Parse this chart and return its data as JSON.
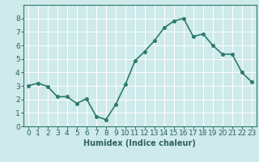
{
  "x": [
    0,
    1,
    2,
    3,
    4,
    5,
    6,
    7,
    8,
    9,
    10,
    11,
    12,
    13,
    14,
    15,
    16,
    17,
    18,
    19,
    20,
    21,
    22,
    23
  ],
  "y": [
    3.0,
    3.2,
    2.95,
    2.2,
    2.2,
    1.7,
    2.05,
    0.75,
    0.5,
    1.6,
    3.1,
    4.85,
    5.55,
    6.35,
    7.3,
    7.8,
    8.0,
    6.65,
    6.85,
    6.0,
    5.35,
    5.35,
    4.0,
    3.3
  ],
  "line_color": "#2d7a6e",
  "marker": "o",
  "marker_size": 2.5,
  "linewidth": 1.2,
  "xlabel": "Humidex (Indice chaleur)",
  "xlim": [
    -0.5,
    23.5
  ],
  "ylim": [
    0,
    9
  ],
  "yticks": [
    0,
    1,
    2,
    3,
    4,
    5,
    6,
    7,
    8
  ],
  "xticks": [
    0,
    1,
    2,
    3,
    4,
    5,
    6,
    7,
    8,
    9,
    10,
    11,
    12,
    13,
    14,
    15,
    16,
    17,
    18,
    19,
    20,
    21,
    22,
    23
  ],
  "bg_color": "#ceeaea",
  "grid_color": "#ffffff",
  "axis_color": "#2d7a6e",
  "tick_color": "#2d6060",
  "xlabel_fontsize": 7,
  "tick_fontsize": 6.5
}
